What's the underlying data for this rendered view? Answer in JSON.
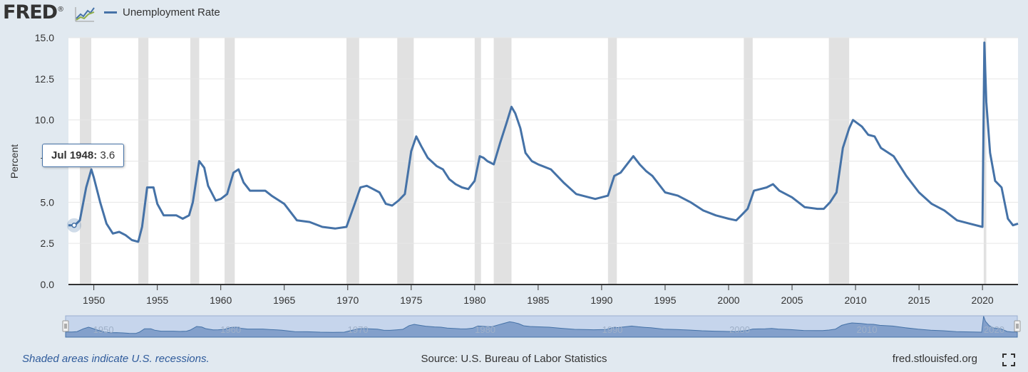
{
  "header": {
    "logo_text": "FRED",
    "logo_suffix": "®"
  },
  "footer": {
    "recession_note": "Shaded areas indicate U.S. recessions.",
    "source": "Source: U.S. Bureau of Labor Statistics",
    "site": "fred.stlouisfed.org"
  },
  "tooltip": {
    "date": "Jul 1948:",
    "value": "3.6"
  },
  "colors": {
    "series": "#4572a7",
    "recession": "#e1e1e1",
    "background": "#e1e9f0"
  },
  "chart_data": {
    "type": "line",
    "title": "",
    "xlabel": "",
    "ylabel": "Percent",
    "xlim": [
      1948.0,
      2022.8
    ],
    "ylim": [
      0,
      15
    ],
    "y_ticks": [
      "0.0",
      "2.5",
      "5.0",
      "7.5",
      "10.0",
      "12.5",
      "15.0"
    ],
    "y_tick_values": [
      0,
      2.5,
      5,
      7.5,
      10,
      12.5,
      15
    ],
    "x_ticks": [
      1950,
      1955,
      1960,
      1965,
      1970,
      1975,
      1980,
      1985,
      1990,
      1995,
      2000,
      2005,
      2010,
      2015,
      2020
    ],
    "navigator_ticks": [
      1950,
      1960,
      1970,
      1980,
      1990,
      2000,
      2010,
      2020
    ],
    "grid": true,
    "legend": "top-left",
    "recessions": [
      [
        1948.9,
        1949.8
      ],
      [
        1953.5,
        1954.3
      ],
      [
        1957.6,
        1958.3
      ],
      [
        1960.3,
        1961.1
      ],
      [
        1969.9,
        1970.9
      ],
      [
        1973.9,
        1975.2
      ],
      [
        1980.0,
        1980.5
      ],
      [
        1981.5,
        1982.9
      ],
      [
        1990.5,
        1991.2
      ],
      [
        2001.2,
        2001.9
      ],
      [
        2007.9,
        2009.5
      ],
      [
        2020.1,
        2020.3
      ]
    ],
    "series": [
      {
        "name": "Unemployment Rate",
        "x": [
          1948.0,
          1948.5,
          1948.9,
          1949.4,
          1949.8,
          1950.0,
          1950.5,
          1951.0,
          1951.5,
          1952.0,
          1952.5,
          1953.0,
          1953.5,
          1953.8,
          1954.2,
          1954.7,
          1955.0,
          1955.5,
          1956.0,
          1956.5,
          1957.0,
          1957.5,
          1957.8,
          1958.3,
          1958.7,
          1959.0,
          1959.6,
          1960.0,
          1960.5,
          1961.0,
          1961.4,
          1961.8,
          1962.3,
          1963.0,
          1963.5,
          1964.0,
          1964.6,
          1965.0,
          1965.5,
          1966.0,
          1967.0,
          1968.0,
          1969.0,
          1969.9,
          1970.5,
          1971.0,
          1971.5,
          1972.0,
          1972.5,
          1973.0,
          1973.5,
          1974.0,
          1974.5,
          1975.0,
          1975.4,
          1975.8,
          1976.3,
          1977.0,
          1977.5,
          1978.0,
          1978.5,
          1979.0,
          1979.5,
          1980.0,
          1980.4,
          1980.7,
          1981.0,
          1981.5,
          1982.0,
          1982.5,
          1982.9,
          1983.2,
          1983.6,
          1984.0,
          1984.5,
          1985.0,
          1986.0,
          1987.0,
          1988.0,
          1989.0,
          1989.5,
          1990.5,
          1991.0,
          1991.5,
          1992.0,
          1992.5,
          1993.0,
          1993.5,
          1994.0,
          1995.0,
          1996.0,
          1997.0,
          1998.0,
          1999.0,
          2000.0,
          2000.6,
          2001.0,
          2001.5,
          2002.0,
          2002.5,
          2003.0,
          2003.5,
          2004.0,
          2005.0,
          2006.0,
          2007.0,
          2007.5,
          2008.0,
          2008.5,
          2009.0,
          2009.5,
          2009.8,
          2010.5,
          2011.0,
          2011.5,
          2012.0,
          2013.0,
          2014.0,
          2015.0,
          2016.0,
          2017.0,
          2018.0,
          2019.0,
          2020.0,
          2020.15,
          2020.3,
          2020.6,
          2021.0,
          2021.5,
          2022.0,
          2022.4,
          2022.8
        ],
        "values": [
          3.6,
          3.6,
          3.9,
          5.9,
          7.0,
          6.5,
          5.0,
          3.7,
          3.1,
          3.2,
          3.0,
          2.7,
          2.6,
          3.5,
          5.9,
          5.9,
          4.9,
          4.2,
          4.2,
          4.2,
          4.0,
          4.2,
          5.0,
          7.5,
          7.1,
          6.0,
          5.1,
          5.2,
          5.5,
          6.8,
          7.0,
          6.2,
          5.7,
          5.7,
          5.7,
          5.4,
          5.1,
          4.9,
          4.4,
          3.9,
          3.8,
          3.5,
          3.4,
          3.5,
          4.8,
          5.9,
          6.0,
          5.8,
          5.6,
          4.9,
          4.8,
          5.1,
          5.5,
          8.1,
          9.0,
          8.4,
          7.7,
          7.2,
          7.0,
          6.4,
          6.1,
          5.9,
          5.8,
          6.3,
          7.8,
          7.7,
          7.5,
          7.3,
          8.6,
          9.8,
          10.8,
          10.4,
          9.5,
          8.0,
          7.5,
          7.3,
          7.0,
          6.2,
          5.5,
          5.3,
          5.2,
          5.4,
          6.6,
          6.8,
          7.3,
          7.8,
          7.3,
          6.9,
          6.6,
          5.6,
          5.4,
          5.0,
          4.5,
          4.2,
          4.0,
          3.9,
          4.2,
          4.6,
          5.7,
          5.8,
          5.9,
          6.1,
          5.7,
          5.3,
          4.7,
          4.6,
          4.6,
          5.0,
          5.6,
          8.3,
          9.5,
          10.0,
          9.6,
          9.1,
          9.0,
          8.3,
          7.8,
          6.6,
          5.6,
          4.9,
          4.5,
          3.9,
          3.7,
          3.5,
          14.7,
          11.1,
          8.0,
          6.3,
          5.9,
          4.0,
          3.6,
          3.7
        ]
      }
    ]
  }
}
